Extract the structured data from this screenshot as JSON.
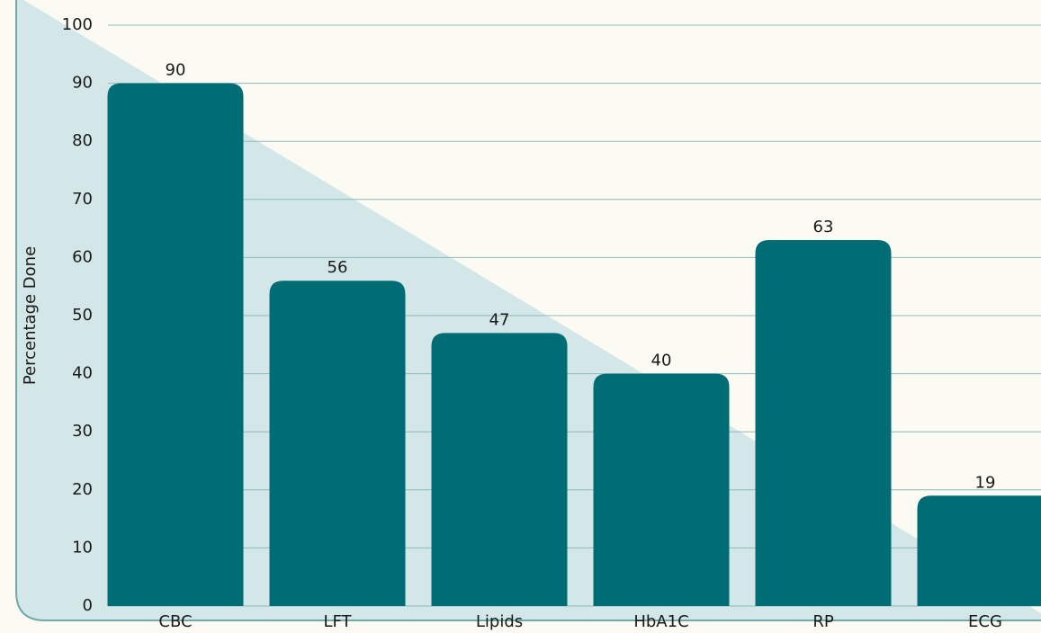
{
  "chart_data": {
    "type": "bar",
    "y_label": "Percentage Done",
    "categories": [
      "CBC",
      "LFT",
      "Lipids",
      "HbA1C",
      "RP",
      "ECG"
    ],
    "values": [
      90,
      56,
      47,
      40,
      63,
      19
    ],
    "color": "#006d75",
    "ylim": [
      0,
      100
    ],
    "yticks": [
      0,
      10,
      20,
      30,
      40,
      50,
      60,
      70,
      80,
      90,
      100
    ],
    "grid": true
  }
}
